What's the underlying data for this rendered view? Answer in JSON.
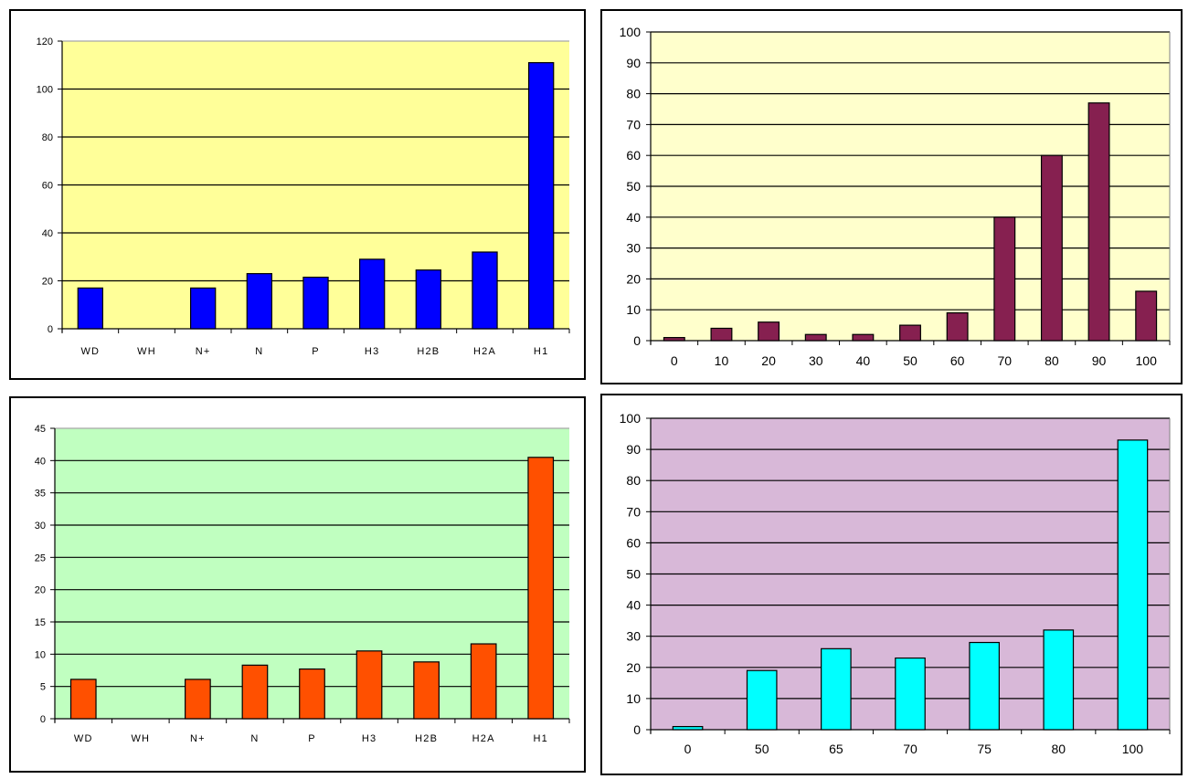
{
  "chart_data": [
    {
      "type": "bar",
      "title": "",
      "xlabel": "",
      "ylabel": "",
      "categories": [
        "WD",
        "WH",
        "N+",
        "N",
        "P",
        "H3",
        "H2B",
        "H2A",
        "H1"
      ],
      "values": [
        17,
        0,
        17,
        23,
        21.5,
        29,
        24.5,
        32,
        111
      ],
      "ylim": [
        0,
        120
      ],
      "yticks": [
        0,
        20,
        40,
        60,
        80,
        100,
        120
      ],
      "grid": true,
      "plot_bg": "#ffff99",
      "bar_color": "#0000ff"
    },
    {
      "type": "bar",
      "title": "",
      "xlabel": "",
      "ylabel": "",
      "categories": [
        "0",
        "10",
        "20",
        "30",
        "40",
        "50",
        "60",
        "70",
        "80",
        "90",
        "100"
      ],
      "values": [
        1,
        4,
        6,
        2,
        2,
        5,
        9,
        40,
        60,
        77,
        16
      ],
      "ylim": [
        0,
        100
      ],
      "yticks": [
        0,
        10,
        20,
        30,
        40,
        50,
        60,
        70,
        80,
        90,
        100
      ],
      "grid": true,
      "plot_bg": "#ffffcc",
      "bar_color": "#862050"
    },
    {
      "type": "bar",
      "title": "",
      "xlabel": "",
      "ylabel": "",
      "categories": [
        "WD",
        "WH",
        "N+",
        "N",
        "P",
        "H3",
        "H2B",
        "H2A",
        "H1"
      ],
      "values": [
        6.1,
        0,
        6.1,
        8.3,
        7.7,
        10.5,
        8.8,
        11.6,
        40.5
      ],
      "ylim": [
        0,
        45
      ],
      "yticks": [
        0,
        5,
        10,
        15,
        20,
        25,
        30,
        35,
        40,
        45
      ],
      "grid": true,
      "plot_bg": "#c0ffc0",
      "bar_color": "#ff5000"
    },
    {
      "type": "bar",
      "title": "",
      "xlabel": "",
      "ylabel": "",
      "categories": [
        "0",
        "50",
        "65",
        "70",
        "75",
        "80",
        "100"
      ],
      "values": [
        1,
        19,
        26,
        23,
        28,
        32,
        93
      ],
      "ylim": [
        0,
        100
      ],
      "yticks": [
        0,
        10,
        20,
        30,
        40,
        50,
        60,
        70,
        80,
        90,
        100
      ],
      "grid": true,
      "plot_bg": "#d8b8d8",
      "bar_color": "#00ffff"
    }
  ]
}
